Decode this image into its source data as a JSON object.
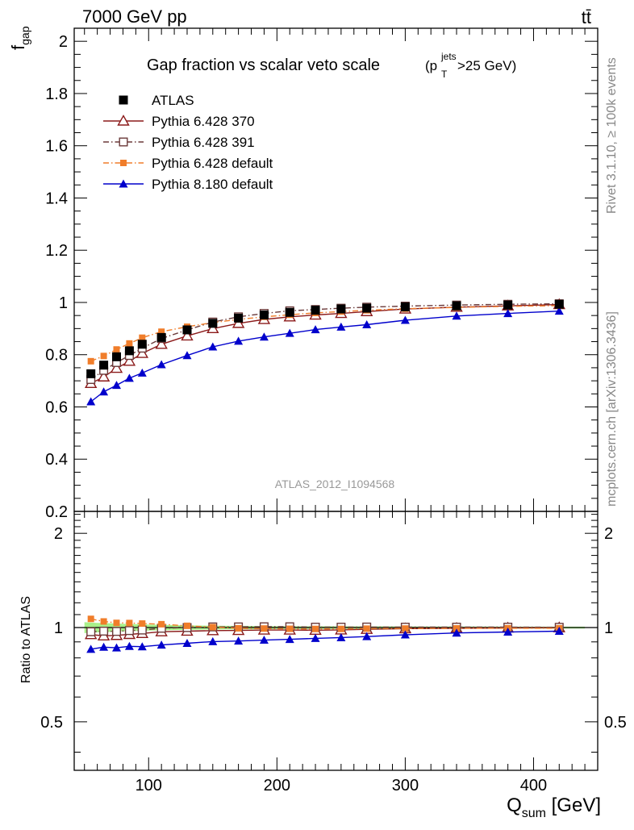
{
  "header": {
    "left_title": "7000 GeV pp",
    "right_title": "tt̄"
  },
  "side_labels": {
    "right_top": "Rivet 3.1.10, ≥ 100k events",
    "right_bottom": "mcplots.cern.ch [arXiv:1306.3436]"
  },
  "chart_data": [
    {
      "type": "line",
      "title": "Gap fraction vs scalar veto scale",
      "title_suffix": {
        "base": "(p",
        "sup": "jets",
        "sub": "T",
        "tail": ">25 GeV)"
      },
      "ylabel": {
        "base": "f",
        "sub": "gap"
      },
      "watermark": "ATLAS_2012_I1094568",
      "xlim": [
        42,
        450
      ],
      "ylim": [
        0.2,
        2.05
      ],
      "yticks": [
        0.2,
        0.4,
        0.6,
        0.8,
        1,
        1.2,
        1.4,
        1.6,
        1.8,
        2
      ],
      "ytick_labels": [
        "0.2",
        "0.4",
        "0.6",
        "0.8",
        "1",
        "1.2",
        "1.4",
        "1.6",
        "1.8",
        "2"
      ],
      "legend": {
        "placement": "top-left"
      },
      "x": [
        55,
        65,
        75,
        85,
        95,
        110,
        130,
        150,
        170,
        190,
        210,
        230,
        250,
        270,
        300,
        340,
        380,
        420
      ],
      "series": [
        {
          "name": "ATLAS",
          "color": "#000000",
          "marker": "square-filled",
          "line": "none",
          "values": [
            0.727,
            0.76,
            0.792,
            0.815,
            0.84,
            0.866,
            0.895,
            0.92,
            0.94,
            0.952,
            0.962,
            0.97,
            0.975,
            0.978,
            0.983,
            0.987,
            0.99,
            0.993
          ]
        },
        {
          "name": "Pythia 6.428 370",
          "color": "#8b1a1a",
          "marker": "triangle-open",
          "line": "solid",
          "values": [
            0.69,
            0.715,
            0.748,
            0.775,
            0.805,
            0.84,
            0.872,
            0.9,
            0.92,
            0.935,
            0.945,
            0.952,
            0.958,
            0.965,
            0.975,
            0.982,
            0.987,
            0.992
          ]
        },
        {
          "name": "Pythia 6.428 391",
          "color": "#6b3a3a",
          "marker": "square-open",
          "line": "dashdot",
          "values": [
            0.705,
            0.74,
            0.77,
            0.797,
            0.825,
            0.862,
            0.895,
            0.925,
            0.945,
            0.958,
            0.968,
            0.973,
            0.978,
            0.982,
            0.986,
            0.99,
            0.993,
            0.995
          ]
        },
        {
          "name": "Pythia 6.428 default",
          "color": "#f07d2a",
          "marker": "square-filled-small",
          "line": "dashdot",
          "values": [
            0.775,
            0.795,
            0.82,
            0.843,
            0.865,
            0.888,
            0.907,
            0.923,
            0.935,
            0.945,
            0.953,
            0.96,
            0.965,
            0.97,
            0.976,
            0.981,
            0.985,
            0.988
          ]
        },
        {
          "name": "Pythia 8.180 default",
          "color": "#0000cc",
          "marker": "triangle-filled",
          "line": "solid",
          "values": [
            0.62,
            0.658,
            0.683,
            0.71,
            0.73,
            0.762,
            0.797,
            0.83,
            0.852,
            0.868,
            0.882,
            0.896,
            0.906,
            0.915,
            0.932,
            0.948,
            0.958,
            0.967
          ]
        }
      ]
    },
    {
      "type": "line",
      "ylabel": "Ratio to ATLAS",
      "xlabel": {
        "base": "Q",
        "sub": "sum",
        "tail": " [GeV]"
      },
      "xlim": [
        42,
        450
      ],
      "xticks": [
        100,
        200,
        300,
        400
      ],
      "xtick_labels": [
        "100",
        "200",
        "300",
        "400"
      ],
      "ylim": [
        0.35,
        2.35
      ],
      "yscale": "log",
      "yticks": [
        0.5,
        1,
        2
      ],
      "ytick_labels": [
        "0.5",
        "1",
        "2"
      ],
      "band": {
        "name": "ATLAS uncertainty",
        "color": "#a8f08a",
        "x": [
          50,
          60,
          70,
          80,
          90,
          100,
          120,
          140,
          160,
          180,
          200,
          220,
          240,
          260,
          280,
          320,
          360,
          400,
          440
        ],
        "upper": [
          1.04,
          1.035,
          1.032,
          1.028,
          1.025,
          1.022,
          1.018,
          1.015,
          1.013,
          1.012,
          1.011,
          1.01,
          1.01,
          1.009,
          1.009,
          1.008,
          1.008,
          1.007,
          1.007
        ],
        "lower": [
          0.96,
          0.965,
          0.968,
          0.972,
          0.975,
          0.978,
          0.982,
          0.985,
          0.987,
          0.988,
          0.989,
          0.99,
          0.99,
          0.991,
          0.991,
          0.992,
          0.992,
          0.993,
          0.993
        ]
      },
      "x": [
        55,
        65,
        75,
        85,
        95,
        110,
        130,
        150,
        170,
        190,
        210,
        230,
        250,
        270,
        300,
        340,
        380,
        420
      ],
      "series": [
        {
          "name": "Pythia 6.428 370",
          "values": [
            0.95,
            0.941,
            0.944,
            0.951,
            0.958,
            0.97,
            0.974,
            0.978,
            0.979,
            0.982,
            0.982,
            0.981,
            0.983,
            0.987,
            0.992,
            0.995,
            0.997,
            0.999
          ]
        },
        {
          "name": "Pythia 6.428 391",
          "values": [
            0.97,
            0.974,
            0.972,
            0.978,
            0.982,
            0.995,
            1.0,
            1.005,
            1.005,
            1.006,
            1.006,
            1.003,
            1.003,
            1.004,
            1.003,
            1.003,
            1.003,
            1.002
          ]
        },
        {
          "name": "Pythia 6.428 default",
          "values": [
            1.066,
            1.046,
            1.035,
            1.034,
            1.03,
            1.025,
            1.013,
            1.003,
            0.995,
            0.993,
            0.991,
            0.99,
            0.99,
            0.992,
            0.993,
            0.994,
            0.995,
            0.995
          ]
        },
        {
          "name": "Pythia 8.180 default",
          "values": [
            0.853,
            0.866,
            0.862,
            0.871,
            0.869,
            0.88,
            0.891,
            0.902,
            0.906,
            0.912,
            0.917,
            0.924,
            0.929,
            0.936,
            0.948,
            0.961,
            0.968,
            0.974
          ]
        }
      ]
    }
  ]
}
